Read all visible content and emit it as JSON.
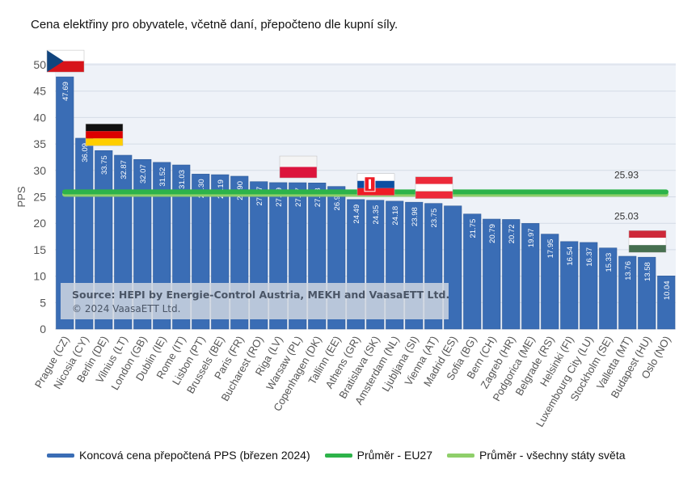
{
  "chart_data": {
    "type": "bar",
    "title": "Cena elektřiny pro obyvatele, včetně daní, přepočteno dle kupní síly.",
    "ylabel": "PPS",
    "xlabel": "",
    "ylim": [
      0,
      50
    ],
    "yticks": [
      0,
      5,
      10,
      15,
      20,
      25,
      30,
      35,
      40,
      45,
      50
    ],
    "grid": true,
    "categories": [
      "Prague (CZ)",
      "Nicosia (CY)",
      "Berlin (DE)",
      "Vilnius (LT)",
      "London (GB)",
      "Dublin (IE)",
      "Rome (IT)",
      "Lisbon (PT)",
      "Brussels (BE)",
      "Paris (FR)",
      "Bucharest (RO)",
      "Riga (LV)",
      "Warsaw (PL)",
      "Copenhagen (DK)",
      "Tallinn (EE)",
      "Athens (GR)",
      "Bratislava (SK)",
      "Amsterdam (NL)",
      "Ljubljana (SI)",
      "Vienna (AT)",
      "Madrid (ES)",
      "Sofia (BG)",
      "Bern (CH)",
      "Zagreb (HR)",
      "Podgorica (ME)",
      "Belgrade (RS)",
      "Helsinki (FI)",
      "Luxembourg City (LU)",
      "Stockholm (SE)",
      "Valletta (MT)",
      "Budapest (HU)",
      "Oslo (NO)"
    ],
    "series": [
      {
        "name": "Koncová cena přepočtená PPS (březen 2024)",
        "color": "#3a6db5",
        "values": [
          47.69,
          36.09,
          33.75,
          32.87,
          32.07,
          31.52,
          31.03,
          29.3,
          29.19,
          28.9,
          27.87,
          27.69,
          27.67,
          27.63,
          26.96,
          24.49,
          24.35,
          24.18,
          23.98,
          23.75,
          23.28,
          21.75,
          20.79,
          20.72,
          19.97,
          17.95,
          16.54,
          16.37,
          15.33,
          13.76,
          13.58,
          10.04
        ],
        "labels": [
          "47.69",
          "36.09",
          "33.75",
          "32.87",
          "32.07",
          "31.52",
          "31.03",
          "29.30",
          "29.19",
          "28.90",
          "27.87",
          "27.69",
          "27.67",
          "27.63",
          "26.96",
          "24.49",
          "24.35",
          "24.18",
          "23.98",
          "23.75",
          "",
          "21.75",
          "20.79",
          "20.72",
          "19.97",
          "17.95",
          "16.54",
          "16.37",
          "15.33",
          "13.76",
          "13.58",
          "10.04"
        ]
      }
    ],
    "reference_lines": [
      {
        "name": "Průměr - EU27",
        "value": 25.93,
        "label": "25.93",
        "color": "#2db34a"
      },
      {
        "name": "Průměr - všechny státy světa",
        "value": 25.03,
        "label": "25.03",
        "color": "#8fcf6a"
      }
    ],
    "legend_position": "bottom",
    "source_note": [
      "Source: HEPI by Energie-Control Austria, MEKH and VaasaETT Ltd.",
      "© 2024 VaasaETT Ltd."
    ],
    "flags": [
      {
        "category": "Prague (CZ)",
        "country": "CZ"
      },
      {
        "category": "Berlin (DE)",
        "country": "DE"
      },
      {
        "category": "Warsaw (PL)",
        "country": "PL"
      },
      {
        "category": "Bratislava (SK)",
        "country": "SK"
      },
      {
        "category": "Vienna (AT)",
        "country": "AT"
      },
      {
        "category": "Budapest (HU)",
        "country": "HU"
      }
    ]
  },
  "legend": {
    "bars": "Koncová cena přepočtená PPS (březen 2024)",
    "eu27": "Průměr - EU27",
    "world": "Průměr - všechny státy světa"
  }
}
